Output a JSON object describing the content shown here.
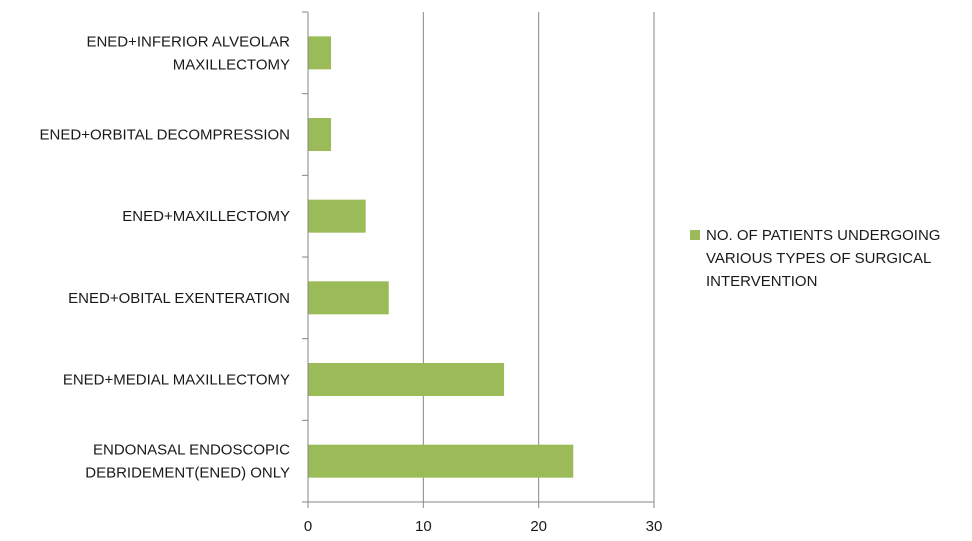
{
  "chart_data": {
    "type": "bar",
    "orientation": "horizontal",
    "categories": [
      "ENDONASAL ENDOSCOPIC DEBRIDEMENT(ENED) ONLY",
      "ENED+MEDIAL MAXILLECTOMY",
      "ENED+OBITAL EXENTERATION",
      "ENED+MAXILLECTOMY",
      "ENED+ORBITAL DECOMPRESSION",
      "ENED+INFERIOR ALVEOLAR MAXILLECTOMY"
    ],
    "category_lines": [
      [
        "ENDONASAL ENDOSCOPIC",
        "DEBRIDEMENT(ENED) ONLY"
      ],
      [
        "ENED+MEDIAL MAXILLECTOMY"
      ],
      [
        "ENED+OBITAL EXENTERATION"
      ],
      [
        "ENED+MAXILLECTOMY"
      ],
      [
        "ENED+ORBITAL DECOMPRESSION"
      ],
      [
        "ENED+INFERIOR ALVEOLAR",
        "MAXILLECTOMY"
      ]
    ],
    "series": [
      {
        "name": "NO. OF PATIENTS UNDERGOING VARIOUS TYPES OF SURGICAL INTERVENTION",
        "values": [
          23,
          17,
          7,
          5,
          2,
          2
        ],
        "color": "#9bbb59"
      }
    ],
    "legend_lines": [
      "NO. OF PATIENTS UNDERGOING",
      "VARIOUS TYPES OF SURGICAL",
      "INTERVENTION"
    ],
    "xlim": [
      0,
      30
    ],
    "xticks": [
      0,
      10,
      20,
      30
    ],
    "grid": "vertical",
    "legend_position": "right",
    "title": "",
    "xlabel": "",
    "ylabel": ""
  }
}
